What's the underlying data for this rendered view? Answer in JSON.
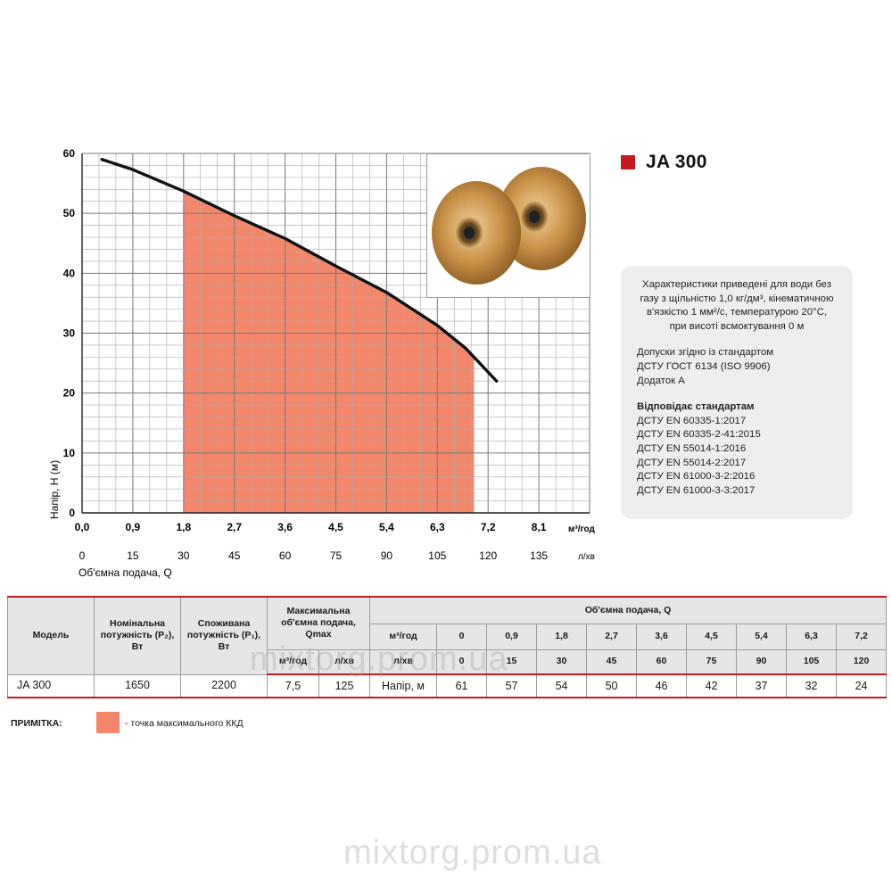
{
  "product": {
    "model_name": "JA 300",
    "accent_color": "#c41a1f",
    "highlight_color": "#f2876c"
  },
  "info": {
    "line1": "Характеристики приведені для води без",
    "line2": "газу з щільністю 1,0 кг/дм³, кінематичною",
    "line3": "в'язкістю 1 мм²/с, температурою 20°С,",
    "line4": "при висоті всмоктування 0 м",
    "tolerance1": "Допуски згідно із стандартом",
    "tolerance2": "ДСТУ ГОСТ 6134 (ISO 9906)",
    "tolerance3": "Додаток А",
    "standards_title": "Відповідає стандартам",
    "standards": [
      "ДСТУ EN 60335-1:2017",
      "ДСТУ EN 60335-2-41:2015",
      "ДСТУ EN 55014-1:2016",
      "ДСТУ EN 55014-2:2017",
      "ДСТУ EN 61000-3-2:2016",
      "ДСТУ EN 61000-3-3:2017"
    ]
  },
  "chart_data": {
    "type": "line",
    "ylabel": "Напір, H (м)",
    "xlabel": "Об'ємна подача, Q",
    "x_unit": "м³/год",
    "x2_unit": "л/хв",
    "x_ticks": [
      "0,0",
      "0,9",
      "1,8",
      "2,7",
      "3,6",
      "4,5",
      "5,4",
      "6,3",
      "7,2",
      "8,1"
    ],
    "x2_ticks": [
      "0",
      "15",
      "30",
      "45",
      "60",
      "75",
      "90",
      "105",
      "120",
      "135"
    ],
    "y_ticks": [
      "0",
      "10",
      "20",
      "30",
      "40",
      "50",
      "60"
    ],
    "xlim": [
      0,
      9.0
    ],
    "ylim": [
      0,
      60
    ],
    "grid": true,
    "series": [
      {
        "x": [
          0.35,
          0.9,
          1.8,
          2.7,
          3.6,
          4.5,
          5.4,
          6.3,
          6.8,
          7.35
        ],
        "y": [
          59,
          57.3,
          53.7,
          49.6,
          45.8,
          41.2,
          36.8,
          31.3,
          27.5,
          22
        ],
        "color": "#111111"
      }
    ],
    "shaded_range": {
      "x_from": 1.8,
      "x_to": 6.95,
      "color": "#f2876c"
    }
  },
  "table": {
    "h_model": "Модель",
    "h_p2": "Номінальна потужність (P₂), Вт",
    "h_p1": "Споживана потужність (P₁), Вт",
    "h_qmax": "Максимальна об'ємна подача, Qmax",
    "h_qmax_u1": "м³/год",
    "h_qmax_u2": "л/хв",
    "h_flow": "Об'ємна подача, Q",
    "h_unit_m3": "м³/год",
    "h_unit_lmin": "л/хв",
    "h_head": "Напір, м",
    "flow_m3": [
      "0",
      "0,9",
      "1,8",
      "2,7",
      "3,6",
      "4,5",
      "5,4",
      "6,3",
      "7,2"
    ],
    "flow_lmin": [
      "0",
      "15",
      "30",
      "45",
      "60",
      "75",
      "90",
      "105",
      "120"
    ],
    "row": {
      "model": "JA 300",
      "p2": "1650",
      "p1": "2200",
      "qmax_m3": "7,5",
      "qmax_lmin": "125",
      "heads": [
        "61",
        "57",
        "54",
        "50",
        "46",
        "42",
        "37",
        "32",
        "24"
      ],
      "highlight_index": 5
    }
  },
  "note": {
    "label": "ПРИМІТКА:",
    "text": "- точка максимального ККД"
  },
  "watermarks": [
    "mixtorg.prom.ua",
    "mixtorg.prom.ua"
  ],
  "icons": [
    "impeller-photo"
  ]
}
